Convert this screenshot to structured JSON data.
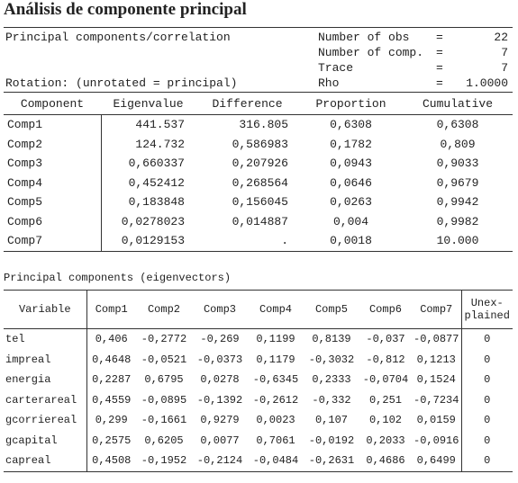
{
  "title": "Análisis de componente principal",
  "summary": {
    "left": [
      "Principal components/correlation",
      "Rotation: (unrotated = principal)"
    ],
    "stats": [
      {
        "label": "Number of obs",
        "eq": "=",
        "value": "22"
      },
      {
        "label": "Number of comp.",
        "eq": "=",
        "value": "7"
      },
      {
        "label": "Trace",
        "eq": "=",
        "value": "7"
      },
      {
        "label": "Rho",
        "eq": "=",
        "value": "1.0000"
      }
    ]
  },
  "table": {
    "columns": [
      "Component",
      "Eigenvalue",
      "Difference",
      "Proportion",
      "Cumulative"
    ],
    "rows": [
      [
        "Comp1",
        "441.537",
        "316.805",
        "0,6308",
        "0,6308"
      ],
      [
        "Comp2",
        "124.732",
        "0,586983",
        "0,1782",
        "0,809"
      ],
      [
        "Comp3",
        "0,660337",
        "0,207926",
        "0,0943",
        "0,9033"
      ],
      [
        "Comp4",
        "0,452412",
        "0,268564",
        "0,0646",
        "0,9679"
      ],
      [
        "Comp5",
        "0,183848",
        "0,156045",
        "0,0263",
        "0,9942"
      ],
      [
        "Comp6",
        "0,0278023",
        "0,014887",
        "0,004",
        "0,9982"
      ],
      [
        "Comp7",
        "0,0129153",
        ".",
        "0,0018",
        "10.000"
      ]
    ]
  },
  "eigenvectors": {
    "caption": "Principal components (eigenvectors)",
    "columns": [
      "Variable",
      "Comp1",
      "Comp2",
      "Comp3",
      "Comp4",
      "Comp5",
      "Comp6",
      "Comp7",
      [
        "Unex-",
        "plained"
      ]
    ],
    "rows": [
      [
        "tel",
        "0,406",
        "-0,2772",
        "-0,269",
        "0,1199",
        "0,8139",
        "-0,037",
        "-0,0877",
        "0"
      ],
      [
        "impreal",
        "0,4648",
        "-0,0521",
        "-0,0373",
        "0,1179",
        "-0,3032",
        "-0,812",
        "0,1213",
        "0"
      ],
      [
        "energia",
        "0,2287",
        "0,6795",
        "0,0278",
        "-0,6345",
        "0,2333",
        "-0,0704",
        "0,1524",
        "0"
      ],
      [
        "carterareal",
        "0,4559",
        "-0,0895",
        "-0,1392",
        "-0,2612",
        "-0,332",
        "0,251",
        "-0,7234",
        "0"
      ],
      [
        "gcorriereal",
        "0,299",
        "-0,1661",
        "0,9279",
        "0,0023",
        "0,107",
        "0,102",
        "0,0159",
        "0"
      ],
      [
        "gcapital",
        "0,2575",
        "0,6205",
        "0,0077",
        "0,7061",
        "-0,0192",
        "0,2033",
        "-0,0916",
        "0"
      ],
      [
        "capreal",
        "0,4508",
        "-0,1952",
        "-0,2124",
        "-0,0484",
        "-0,2631",
        "0,4686",
        "0,6499",
        "0"
      ]
    ]
  }
}
